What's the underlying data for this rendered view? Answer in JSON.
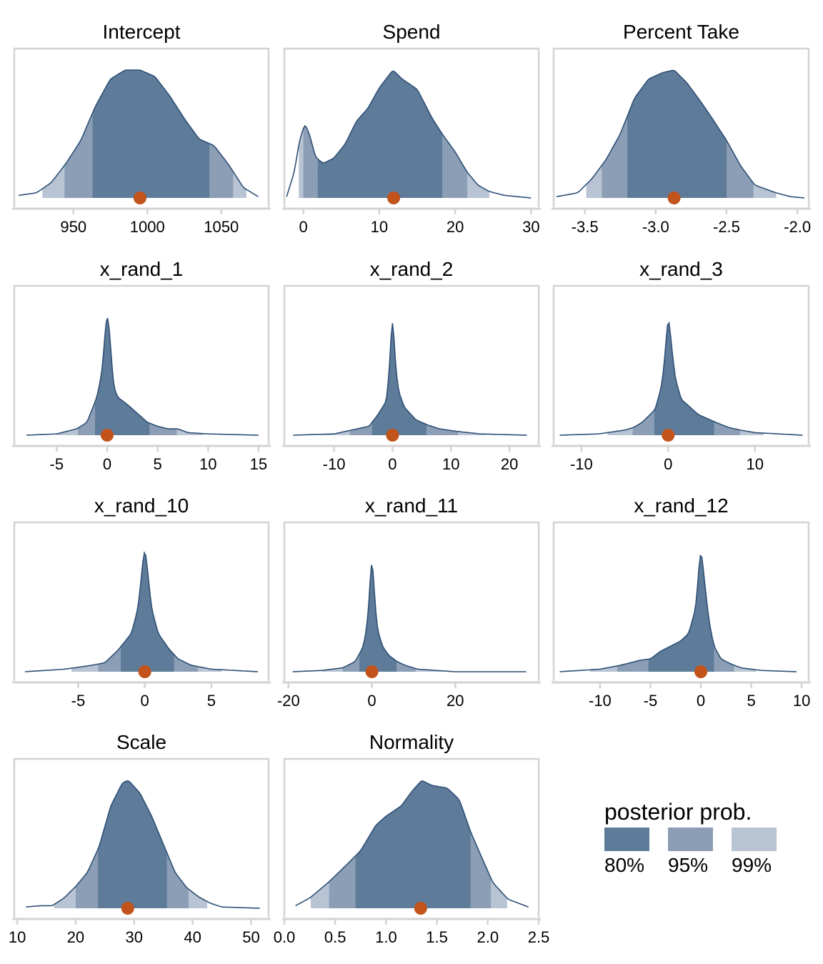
{
  "chart_data": [
    {
      "type": "area",
      "title": "Intercept",
      "xticks": [
        950,
        1000,
        1050
      ],
      "xtick_labels": [
        "950",
        "1000",
        "1050"
      ],
      "xlim": [
        910,
        1082
      ],
      "density": [
        [
          913,
          0.02
        ],
        [
          925,
          0.04
        ],
        [
          935,
          0.12
        ],
        [
          945,
          0.27
        ],
        [
          955,
          0.45
        ],
        [
          965,
          0.72
        ],
        [
          975,
          0.93
        ],
        [
          985,
          1.0
        ],
        [
          995,
          1.0
        ],
        [
          1005,
          0.95
        ],
        [
          1015,
          0.8
        ],
        [
          1025,
          0.62
        ],
        [
          1035,
          0.46
        ],
        [
          1045,
          0.41
        ],
        [
          1055,
          0.26
        ],
        [
          1065,
          0.08
        ],
        [
          1075,
          0.01
        ]
      ],
      "intervals": {
        "p80": [
          963,
          1042
        ],
        "p95": [
          944,
          1058
        ],
        "p99": [
          929,
          1067
        ]
      },
      "median": 995
    },
    {
      "type": "area",
      "title": "Spend",
      "xticks": [
        0,
        10,
        20,
        30
      ],
      "xtick_labels": [
        "0",
        "10",
        "20",
        "30"
      ],
      "xlim": [
        -2.5,
        31
      ],
      "density": [
        [
          -2.2,
          0.01
        ],
        [
          -1.2,
          0.2
        ],
        [
          -0.5,
          0.45
        ],
        [
          0.2,
          0.58
        ],
        [
          0.8,
          0.5
        ],
        [
          1.6,
          0.32
        ],
        [
          2.6,
          0.27
        ],
        [
          4,
          0.31
        ],
        [
          5.5,
          0.42
        ],
        [
          7,
          0.6
        ],
        [
          8.5,
          0.7
        ],
        [
          10,
          0.86
        ],
        [
          11.8,
          1.0
        ],
        [
          13,
          0.93
        ],
        [
          15,
          0.85
        ],
        [
          17,
          0.62
        ],
        [
          18.3,
          0.5
        ],
        [
          20,
          0.36
        ],
        [
          21.6,
          0.2
        ],
        [
          23,
          0.1
        ],
        [
          24.5,
          0.05
        ],
        [
          26.5,
          0.02
        ],
        [
          30,
          0.0
        ]
      ],
      "intervals": {
        "p80": [
          1.9,
          18.3
        ],
        "p95": [
          0.0,
          21.6
        ],
        "p99": [
          -0.6,
          24.5
        ]
      },
      "median": 11.9
    },
    {
      "type": "area",
      "title": "Percent Take",
      "xticks": [
        -3.5,
        -3.0,
        -2.5,
        -2.0
      ],
      "xtick_labels": [
        "-3.5",
        "-3.0",
        "-2.5",
        "-2.0"
      ],
      "xlim": [
        -3.72,
        -1.92
      ],
      "density": [
        [
          -3.7,
          0.01
        ],
        [
          -3.55,
          0.04
        ],
        [
          -3.45,
          0.15
        ],
        [
          -3.35,
          0.3
        ],
        [
          -3.25,
          0.5
        ],
        [
          -3.15,
          0.78
        ],
        [
          -3.05,
          0.93
        ],
        [
          -2.95,
          0.98
        ],
        [
          -2.87,
          1.0
        ],
        [
          -2.78,
          0.9
        ],
        [
          -2.68,
          0.75
        ],
        [
          -2.6,
          0.62
        ],
        [
          -2.5,
          0.45
        ],
        [
          -2.4,
          0.25
        ],
        [
          -2.3,
          0.1
        ],
        [
          -2.15,
          0.04
        ],
        [
          -2.05,
          0.01
        ],
        [
          -1.95,
          0.0
        ]
      ],
      "intervals": {
        "p80": [
          -3.2,
          -2.5
        ],
        "p95": [
          -3.38,
          -2.31
        ],
        "p99": [
          -3.49,
          -2.15
        ]
      },
      "median": -2.87
    },
    {
      "type": "area",
      "title": "x_rand_1",
      "xticks": [
        -5,
        0,
        5,
        10,
        15
      ],
      "xtick_labels": [
        "-5",
        "0",
        "5",
        "10",
        "15"
      ],
      "xlim": [
        -9.2,
        16
      ],
      "density": [
        [
          -8,
          0.0
        ],
        [
          -5,
          0.01
        ],
        [
          -3,
          0.05
        ],
        [
          -2,
          0.1
        ],
        [
          -1,
          0.3
        ],
        [
          -0.5,
          0.5
        ],
        [
          -0.2,
          0.8
        ],
        [
          0,
          1.0
        ],
        [
          0.3,
          0.75
        ],
        [
          0.6,
          0.4
        ],
        [
          1,
          0.3
        ],
        [
          2,
          0.24
        ],
        [
          3,
          0.17
        ],
        [
          4,
          0.1
        ],
        [
          5,
          0.07
        ],
        [
          6,
          0.05
        ],
        [
          7,
          0.05
        ],
        [
          8,
          0.02
        ],
        [
          10,
          0.01
        ],
        [
          15,
          0.0
        ]
      ],
      "intervals": {
        "p80": [
          -1.2,
          4.2
        ],
        "p95": [
          -2.9,
          6.9
        ],
        "p99": [
          -5.0,
          9.5
        ]
      },
      "median": 0.0
    },
    {
      "type": "area",
      "title": "x_rand_2",
      "xticks": [
        -10,
        0,
        10,
        20
      ],
      "xtick_labels": [
        "-10",
        "0",
        "10",
        "20"
      ],
      "xlim": [
        -18.5,
        25
      ],
      "density": [
        [
          -17,
          0.0
        ],
        [
          -10,
          0.01
        ],
        [
          -7,
          0.04
        ],
        [
          -4,
          0.07
        ],
        [
          -2.5,
          0.16
        ],
        [
          -1,
          0.27
        ],
        [
          -0.4,
          0.6
        ],
        [
          0,
          1.0
        ],
        [
          0.4,
          0.6
        ],
        [
          1,
          0.35
        ],
        [
          2,
          0.22
        ],
        [
          4,
          0.12
        ],
        [
          6,
          0.08
        ],
        [
          8,
          0.05
        ],
        [
          11,
          0.03
        ],
        [
          15,
          0.01
        ],
        [
          23,
          0.0
        ]
      ],
      "intervals": {
        "p80": [
          -3.5,
          5.8
        ],
        "p95": [
          -7.3,
          11.2
        ],
        "p99": [
          -12.0,
          16.0
        ]
      },
      "median": 0.0
    },
    {
      "type": "area",
      "title": "x_rand_3",
      "xticks": [
        -10,
        0,
        10
      ],
      "xtick_labels": [
        "-10",
        "0",
        "10"
      ],
      "xlim": [
        -13.2,
        16.2
      ],
      "density": [
        [
          -12.5,
          0.0
        ],
        [
          -8,
          0.01
        ],
        [
          -5,
          0.04
        ],
        [
          -4,
          0.06
        ],
        [
          -3,
          0.1
        ],
        [
          -1.5,
          0.2
        ],
        [
          -0.7,
          0.4
        ],
        [
          -0.2,
          0.75
        ],
        [
          0,
          1.0
        ],
        [
          0.3,
          0.75
        ],
        [
          0.8,
          0.45
        ],
        [
          1.5,
          0.28
        ],
        [
          2.5,
          0.22
        ],
        [
          3.5,
          0.16
        ],
        [
          4.5,
          0.13
        ],
        [
          5.5,
          0.1
        ],
        [
          7,
          0.06
        ],
        [
          8.3,
          0.04
        ],
        [
          10,
          0.02
        ],
        [
          15.5,
          0.0
        ]
      ],
      "intervals": {
        "p80": [
          -1.6,
          5.3
        ],
        "p95": [
          -4.1,
          8.3
        ],
        "p99": [
          -7.0,
          11.0
        ]
      },
      "median": 0.0
    },
    {
      "type": "area",
      "title": "x_rand_10",
      "xticks": [
        -5,
        0,
        5
      ],
      "xtick_labels": [
        "-5",
        "0",
        "5"
      ],
      "xlim": [
        -9.8,
        9.3
      ],
      "density": [
        [
          -9,
          0.0
        ],
        [
          -6,
          0.02
        ],
        [
          -4,
          0.05
        ],
        [
          -3,
          0.07
        ],
        [
          -2,
          0.17
        ],
        [
          -1,
          0.3
        ],
        [
          -0.5,
          0.5
        ],
        [
          -0.2,
          0.8
        ],
        [
          0,
          1.0
        ],
        [
          0.2,
          0.8
        ],
        [
          0.5,
          0.5
        ],
        [
          1,
          0.3
        ],
        [
          1.8,
          0.18
        ],
        [
          2.5,
          0.1
        ],
        [
          3.5,
          0.05
        ],
        [
          5,
          0.02
        ],
        [
          8.5,
          0.0
        ]
      ],
      "intervals": {
        "p80": [
          -1.8,
          2.2
        ],
        "p95": [
          -3.5,
          4.0
        ],
        "p99": [
          -5.5,
          5.8
        ]
      },
      "median": 0.0
    },
    {
      "type": "area",
      "title": "x_rand_11",
      "xticks": [
        -20,
        0,
        20
      ],
      "xtick_labels": [
        "-20",
        "0",
        "20"
      ],
      "xlim": [
        -21,
        40
      ],
      "density": [
        [
          -19,
          0.0
        ],
        [
          -12,
          0.01
        ],
        [
          -7,
          0.03
        ],
        [
          -4,
          0.08
        ],
        [
          -2,
          0.2
        ],
        [
          -1,
          0.4
        ],
        [
          -0.4,
          0.7
        ],
        [
          0,
          1.0
        ],
        [
          0.4,
          0.7
        ],
        [
          1.2,
          0.35
        ],
        [
          2.5,
          0.2
        ],
        [
          4,
          0.13
        ],
        [
          6,
          0.08
        ],
        [
          8,
          0.05
        ],
        [
          11,
          0.02
        ],
        [
          20,
          0.0
        ],
        [
          37,
          0.0
        ]
      ],
      "intervals": {
        "p80": [
          -3.0,
          5.9
        ],
        "p95": [
          -7.0,
          10.5
        ],
        "p99": [
          -12.0,
          17.0
        ]
      },
      "median": 0.0
    },
    {
      "type": "area",
      "title": "x_rand_12",
      "xticks": [
        -10,
        -5,
        0,
        5,
        10
      ],
      "xtick_labels": [
        "-10",
        "-5",
        "0",
        "5",
        "10"
      ],
      "xlim": [
        -14.6,
        10.7
      ],
      "density": [
        [
          -14,
          0.0
        ],
        [
          -10,
          0.02
        ],
        [
          -8,
          0.05
        ],
        [
          -6,
          0.09
        ],
        [
          -5,
          0.1
        ],
        [
          -4,
          0.16
        ],
        [
          -3,
          0.2
        ],
        [
          -2,
          0.24
        ],
        [
          -1.2,
          0.3
        ],
        [
          -0.5,
          0.5
        ],
        [
          -0.2,
          0.8
        ],
        [
          0,
          1.0
        ],
        [
          0.3,
          0.75
        ],
        [
          0.8,
          0.4
        ],
        [
          1.3,
          0.2
        ],
        [
          2,
          0.1
        ],
        [
          3,
          0.06
        ],
        [
          4,
          0.03
        ],
        [
          6,
          0.01
        ],
        [
          9.5,
          0.0
        ]
      ],
      "intervals": {
        "p80": [
          -5.2,
          1.3
        ],
        "p95": [
          -8.3,
          3.3
        ],
        "p99": [
          -11.0,
          5.5
        ]
      },
      "median": 0.0
    },
    {
      "type": "area",
      "title": "Scale",
      "xticks": [
        10,
        20,
        30,
        40,
        50
      ],
      "xtick_labels": [
        "10",
        "20",
        "30",
        "40",
        "50"
      ],
      "xlim": [
        9.5,
        53
      ],
      "density": [
        [
          11.5,
          0.01
        ],
        [
          14,
          0.02
        ],
        [
          16,
          0.02
        ],
        [
          18,
          0.08
        ],
        [
          20,
          0.17
        ],
        [
          22,
          0.28
        ],
        [
          24,
          0.48
        ],
        [
          26,
          0.8
        ],
        [
          28,
          0.98
        ],
        [
          29,
          1.0
        ],
        [
          31,
          0.9
        ],
        [
          33,
          0.72
        ],
        [
          35,
          0.5
        ],
        [
          37,
          0.28
        ],
        [
          39,
          0.16
        ],
        [
          41,
          0.09
        ],
        [
          43,
          0.04
        ],
        [
          45,
          0.01
        ],
        [
          51.5,
          0.0
        ]
      ],
      "intervals": {
        "p80": [
          23.8,
          35.6
        ],
        "p95": [
          20.0,
          39.3
        ],
        "p99": [
          16.3,
          42.5
        ]
      },
      "median": 28.9
    },
    {
      "type": "area",
      "title": "Normality",
      "xticks": [
        0.0,
        0.5,
        1.0,
        1.5,
        2.0,
        2.5
      ],
      "xtick_labels": [
        "0.0",
        "0.5",
        "1.0",
        "1.5",
        "2.0",
        "2.5"
      ],
      "xlim": [
        0.0,
        2.5
      ],
      "density": [
        [
          0.11,
          0.02
        ],
        [
          0.25,
          0.08
        ],
        [
          0.43,
          0.2
        ],
        [
          0.6,
          0.33
        ],
        [
          0.75,
          0.45
        ],
        [
          0.9,
          0.65
        ],
        [
          1.0,
          0.72
        ],
        [
          1.15,
          0.8
        ],
        [
          1.25,
          0.91
        ],
        [
          1.35,
          1.0
        ],
        [
          1.45,
          0.96
        ],
        [
          1.6,
          0.94
        ],
        [
          1.72,
          0.85
        ],
        [
          1.83,
          0.6
        ],
        [
          1.95,
          0.38
        ],
        [
          2.05,
          0.2
        ],
        [
          2.2,
          0.07
        ],
        [
          2.4,
          0.01
        ]
      ],
      "intervals": {
        "p80": [
          0.7,
          1.83
        ],
        "p95": [
          0.44,
          2.03
        ],
        "p99": [
          0.26,
          2.19
        ]
      },
      "median": 1.34
    }
  ],
  "legend": {
    "title": "posterior prob.",
    "items": [
      {
        "label": "80%",
        "color": "#5E7B99"
      },
      {
        "label": "95%",
        "color": "#8B9EB5"
      },
      {
        "label": "99%",
        "color": "#B8C4D4"
      }
    ]
  },
  "colors": {
    "curve": "#2F5075",
    "p80": "#5E7B99",
    "p95": "#8B9EB5",
    "p99": "#B8C4D4",
    "median": "#C1531B",
    "frame": "#D3D3D3"
  }
}
